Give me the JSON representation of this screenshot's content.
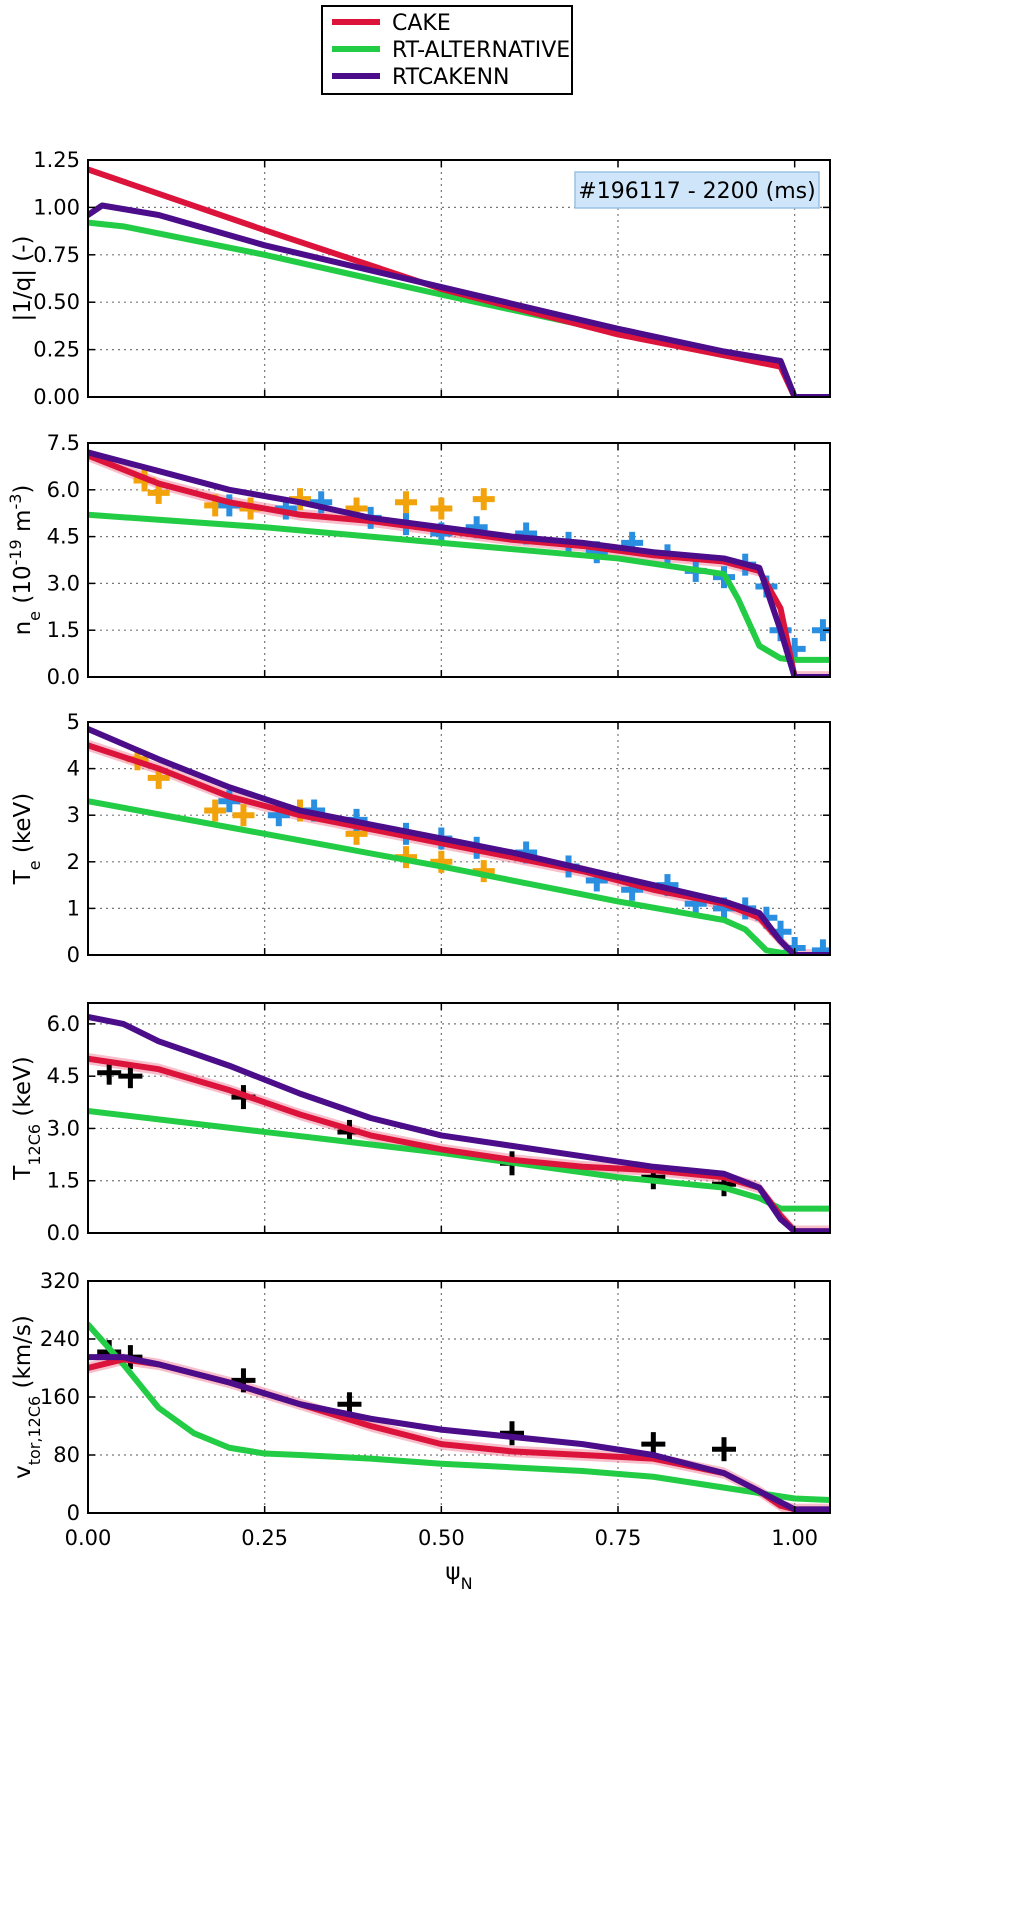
{
  "chart_data": [
    {
      "type": "line",
      "panel": "q",
      "ylabel": "|1/q| (-)",
      "ylim": [
        0,
        1.25
      ],
      "yticks": [
        "0.00",
        "0.25",
        "0.50",
        "0.75",
        "1.00",
        "1.25"
      ],
      "xlim": [
        0,
        1.05
      ],
      "grid": true,
      "annotation": "#196117 - 2200 (ms)",
      "series": [
        {
          "name": "CAKE",
          "color": "#dc143c",
          "x": [
            0,
            0.25,
            0.5,
            0.75,
            0.9,
            0.98,
            1.0,
            1.05
          ],
          "y": [
            1.2,
            0.88,
            0.57,
            0.33,
            0.22,
            0.16,
            0.0,
            0.0
          ]
        },
        {
          "name": "RT-ALTERNATIVE",
          "color": "#22cc44",
          "x": [
            0,
            0.05,
            0.25,
            0.5,
            0.75,
            0.9,
            0.98,
            1.0,
            1.05
          ],
          "y": [
            0.92,
            0.9,
            0.75,
            0.54,
            0.34,
            0.22,
            0.19,
            0.0,
            0.0
          ]
        },
        {
          "name": "RTCAKENN",
          "color": "#4b0d8a",
          "x": [
            0,
            0.02,
            0.1,
            0.25,
            0.5,
            0.75,
            0.9,
            0.98,
            1.0,
            1.05
          ],
          "y": [
            0.96,
            1.01,
            0.96,
            0.8,
            0.58,
            0.36,
            0.24,
            0.19,
            0.0,
            0.0
          ]
        }
      ]
    },
    {
      "type": "line",
      "panel": "ne",
      "ylabel": "n_e (10^-19 m^-3)",
      "ylim": [
        0,
        7.5
      ],
      "yticks": [
        "0.0",
        "1.5",
        "3.0",
        "4.5",
        "6.0",
        "7.5"
      ],
      "xlim": [
        0,
        1.05
      ],
      "grid": true,
      "series": [
        {
          "name": "CAKE",
          "color": "#dc143c",
          "x": [
            0,
            0.1,
            0.2,
            0.3,
            0.4,
            0.5,
            0.6,
            0.7,
            0.8,
            0.9,
            0.95,
            0.98,
            1.0,
            1.05
          ],
          "y": [
            7.1,
            6.2,
            5.6,
            5.2,
            5.0,
            4.7,
            4.4,
            4.2,
            3.9,
            3.7,
            3.4,
            2.2,
            0.0,
            0.0
          ]
        },
        {
          "name": "RT-ALTERNATIVE",
          "color": "#22cc44",
          "x": [
            0,
            0.25,
            0.5,
            0.75,
            0.9,
            0.92,
            0.95,
            0.98,
            1.0,
            1.05
          ],
          "y": [
            5.2,
            4.8,
            4.3,
            3.8,
            3.3,
            2.5,
            1.0,
            0.6,
            0.55,
            0.55
          ]
        },
        {
          "name": "RTCAKENN",
          "color": "#4b0d8a",
          "x": [
            0,
            0.1,
            0.2,
            0.3,
            0.4,
            0.5,
            0.6,
            0.7,
            0.8,
            0.9,
            0.95,
            0.98,
            1.0,
            1.05
          ],
          "y": [
            7.2,
            6.6,
            6.0,
            5.6,
            5.1,
            4.8,
            4.5,
            4.3,
            4.0,
            3.8,
            3.5,
            1.5,
            0.0,
            0.0
          ]
        }
      ],
      "points": [
        {
          "color": "#f2a20a",
          "x": [
            0.08,
            0.1,
            0.18,
            0.23,
            0.3,
            0.38,
            0.45,
            0.5,
            0.56
          ],
          "y": [
            6.3,
            5.9,
            5.5,
            5.4,
            5.7,
            5.4,
            5.6,
            5.4,
            5.7
          ]
        },
        {
          "color": "#2a8fe0",
          "x": [
            0.2,
            0.28,
            0.33,
            0.4,
            0.45,
            0.5,
            0.55,
            0.62,
            0.68,
            0.72,
            0.77,
            0.82,
            0.86,
            0.9,
            0.93,
            0.96,
            0.98,
            1.0,
            1.04
          ],
          "y": [
            5.5,
            5.4,
            5.6,
            5.1,
            4.9,
            4.6,
            4.8,
            4.6,
            4.3,
            4.0,
            4.3,
            3.9,
            3.4,
            3.2,
            3.6,
            2.9,
            1.5,
            0.9,
            1.5
          ]
        }
      ]
    },
    {
      "type": "line",
      "panel": "Te",
      "ylabel": "T_e (keV)",
      "ylim": [
        0,
        5
      ],
      "yticks": [
        "0",
        "1",
        "2",
        "3",
        "4",
        "5"
      ],
      "xlim": [
        0,
        1.05
      ],
      "grid": true,
      "series": [
        {
          "name": "CAKE",
          "color": "#dc143c",
          "x": [
            0,
            0.1,
            0.2,
            0.3,
            0.4,
            0.5,
            0.6,
            0.7,
            0.8,
            0.9,
            0.95,
            0.98,
            1.0,
            1.05
          ],
          "y": [
            4.5,
            4.0,
            3.4,
            3.0,
            2.7,
            2.4,
            2.1,
            1.8,
            1.4,
            1.1,
            0.8,
            0.3,
            0.0,
            0.0
          ]
        },
        {
          "name": "RT-ALTERNATIVE",
          "color": "#22cc44",
          "x": [
            0,
            0.25,
            0.5,
            0.75,
            0.9,
            0.93,
            0.96,
            1.0,
            1.05
          ],
          "y": [
            3.3,
            2.6,
            1.9,
            1.15,
            0.75,
            0.55,
            0.1,
            0.0,
            0.0
          ]
        },
        {
          "name": "RTCAKENN",
          "color": "#4b0d8a",
          "x": [
            0,
            0.1,
            0.2,
            0.3,
            0.4,
            0.5,
            0.6,
            0.7,
            0.8,
            0.9,
            0.95,
            0.98,
            1.0,
            1.05
          ],
          "y": [
            4.85,
            4.2,
            3.6,
            3.1,
            2.8,
            2.5,
            2.2,
            1.85,
            1.5,
            1.15,
            0.9,
            0.3,
            0.0,
            0.0
          ]
        }
      ],
      "points": [
        {
          "color": "#f2a20a",
          "x": [
            0.07,
            0.1,
            0.18,
            0.22,
            0.3,
            0.38,
            0.45,
            0.5,
            0.56
          ],
          "y": [
            4.2,
            3.8,
            3.1,
            3.0,
            3.1,
            2.6,
            2.1,
            2.0,
            1.8
          ]
        },
        {
          "color": "#2a8fe0",
          "x": [
            0.2,
            0.27,
            0.32,
            0.38,
            0.45,
            0.5,
            0.55,
            0.62,
            0.68,
            0.72,
            0.77,
            0.82,
            0.86,
            0.9,
            0.93,
            0.96,
            0.98,
            1.0,
            1.04
          ],
          "y": [
            3.3,
            3.0,
            3.1,
            2.9,
            2.6,
            2.5,
            2.3,
            2.2,
            1.9,
            1.6,
            1.4,
            1.5,
            1.1,
            1.0,
            1.0,
            0.8,
            0.5,
            0.15,
            0.1
          ]
        }
      ]
    },
    {
      "type": "line",
      "panel": "Ti",
      "ylabel": "T_12C6 (keV)",
      "ylim": [
        0,
        6.6
      ],
      "yticks": [
        "0.0",
        "1.5",
        "3.0",
        "4.5",
        "6.0"
      ],
      "xlim": [
        0,
        1.05
      ],
      "grid": true,
      "series": [
        {
          "name": "CAKE",
          "color": "#dc143c",
          "x": [
            0,
            0.1,
            0.2,
            0.3,
            0.4,
            0.5,
            0.6,
            0.7,
            0.8,
            0.9,
            0.95,
            0.98,
            1.0,
            1.05
          ],
          "y": [
            5.0,
            4.7,
            4.1,
            3.4,
            2.8,
            2.4,
            2.1,
            1.9,
            1.8,
            1.6,
            1.3,
            0.5,
            0.05,
            0.05
          ]
        },
        {
          "name": "RT-ALTERNATIVE",
          "color": "#22cc44",
          "x": [
            0,
            0.25,
            0.5,
            0.75,
            0.9,
            0.95,
            0.98,
            1.05
          ],
          "y": [
            3.5,
            2.9,
            2.3,
            1.6,
            1.3,
            1.0,
            0.7,
            0.7
          ]
        },
        {
          "name": "RTCAKENN",
          "color": "#4b0d8a",
          "x": [
            0,
            0.05,
            0.1,
            0.2,
            0.3,
            0.4,
            0.5,
            0.6,
            0.7,
            0.8,
            0.9,
            0.95,
            0.98,
            1.0,
            1.05
          ],
          "y": [
            6.2,
            6.0,
            5.5,
            4.8,
            4.0,
            3.3,
            2.8,
            2.5,
            2.2,
            1.9,
            1.7,
            1.3,
            0.4,
            0.05,
            0.05
          ]
        }
      ],
      "points": [
        {
          "color": "#000000",
          "x": [
            0.03,
            0.06,
            0.22,
            0.37,
            0.6,
            0.8,
            0.9
          ],
          "y": [
            4.6,
            4.5,
            3.9,
            2.9,
            2.0,
            1.6,
            1.4
          ]
        }
      ]
    },
    {
      "type": "line",
      "panel": "vtor",
      "ylabel": "v_tor,12C6 (km/s)",
      "ylim": [
        0,
        320
      ],
      "yticks": [
        "0",
        "80",
        "160",
        "240",
        "320"
      ],
      "xlim": [
        0,
        1.05
      ],
      "xticks": [
        "0.00",
        "0.25",
        "0.50",
        "0.75",
        "1.00"
      ],
      "xlabel": "ψ_N",
      "grid": true,
      "series": [
        {
          "name": "CAKE",
          "color": "#dc143c",
          "x": [
            0,
            0.05,
            0.1,
            0.2,
            0.3,
            0.4,
            0.5,
            0.6,
            0.7,
            0.8,
            0.9,
            0.95,
            0.98,
            1.0,
            1.05
          ],
          "y": [
            200,
            212,
            205,
            180,
            150,
            120,
            95,
            85,
            80,
            75,
            55,
            30,
            10,
            5,
            5
          ]
        },
        {
          "name": "RT-ALTERNATIVE",
          "color": "#22cc44",
          "x": [
            0,
            0.05,
            0.1,
            0.15,
            0.2,
            0.25,
            0.3,
            0.4,
            0.5,
            0.6,
            0.7,
            0.8,
            0.9,
            1.0,
            1.05
          ],
          "y": [
            260,
            205,
            145,
            110,
            90,
            82,
            80,
            75,
            68,
            63,
            58,
            50,
            35,
            20,
            18
          ]
        },
        {
          "name": "RTCAKENN",
          "color": "#4b0d8a",
          "x": [
            0,
            0.05,
            0.1,
            0.2,
            0.3,
            0.4,
            0.5,
            0.6,
            0.7,
            0.8,
            0.9,
            0.95,
            0.98,
            1.0,
            1.05
          ],
          "y": [
            215,
            215,
            205,
            180,
            150,
            130,
            115,
            105,
            95,
            80,
            55,
            30,
            15,
            5,
            5
          ]
        }
      ],
      "points": [
        {
          "color": "#000000",
          "x": [
            0.03,
            0.06,
            0.22,
            0.37,
            0.6,
            0.8,
            0.9
          ],
          "y": [
            222,
            215,
            183,
            150,
            110,
            95,
            88
          ]
        }
      ]
    }
  ],
  "legend": {
    "entries": [
      {
        "label": "CAKE",
        "color": "#dc143c"
      },
      {
        "label": "RT-ALTERNATIVE",
        "color": "#22cc44"
      },
      {
        "label": "RTCAKENN",
        "color": "#4b0d8a"
      }
    ]
  }
}
